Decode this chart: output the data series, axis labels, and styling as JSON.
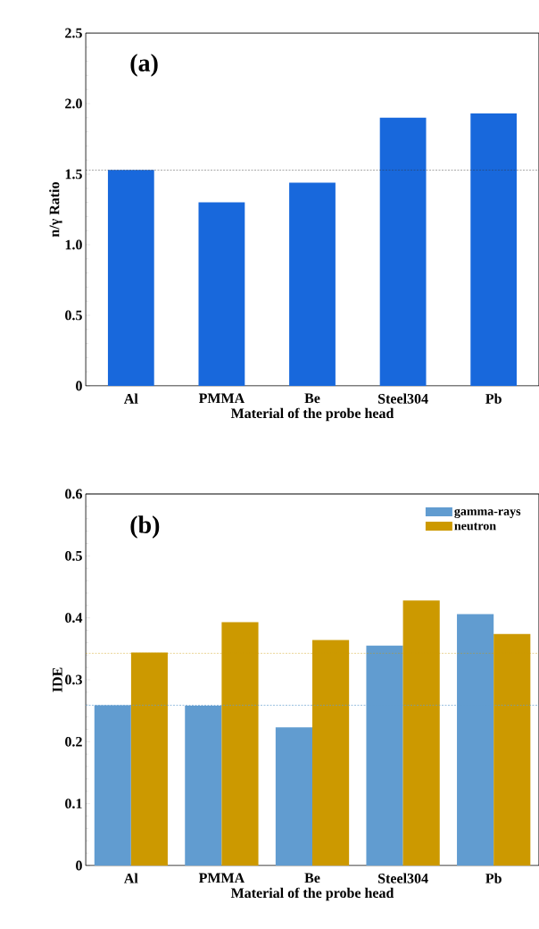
{
  "chart_data": [
    {
      "type": "bar",
      "categories": [
        "Al",
        "PMMA",
        "Be",
        "Steel304",
        "Pb"
      ],
      "values": [
        1.53,
        1.3,
        1.44,
        1.9,
        1.93
      ],
      "color": "#1868dc",
      "xlabel": "Material of the probe head",
      "ylabel": "n/γ Ratio",
      "ylim": [
        0,
        2.5
      ],
      "yticks": [
        0,
        0.5,
        {
          "value": 1,
          "label": "1.0"
        },
        1.5,
        {
          "value": 2,
          "label": "2.0"
        },
        2.5
      ],
      "ref_lines": [
        {
          "axis": "y",
          "value": 1.53,
          "color": "#333333",
          "line_style": "dashed"
        }
      ],
      "annotations": [
        "(a)"
      ],
      "legend": false,
      "grid": false
    },
    {
      "type": "bar",
      "categories": [
        "Al",
        "PMMA",
        "Be",
        "Steel304",
        "Pb"
      ],
      "series": [
        {
          "name": "gamma-rays",
          "color": "#619cd0",
          "values": [
            0.259,
            0.258,
            0.223,
            0.355,
            0.406
          ]
        },
        {
          "name": "neutron",
          "color": "#cc9900",
          "values": [
            0.344,
            0.393,
            0.364,
            0.428,
            0.374
          ]
        }
      ],
      "xlabel": "Material of the probe head",
      "ylabel": "IDE",
      "ylim": [
        0,
        0.6
      ],
      "yticks": [
        0,
        0.1,
        0.2,
        0.3,
        0.4,
        0.5,
        0.6
      ],
      "ref_lines": [
        {
          "axis": "y",
          "value": 0.343,
          "color": "#cc9900",
          "line_style": "dashed"
        },
        {
          "axis": "y",
          "value": 0.259,
          "color": "#619cd0",
          "line_style": "dashed"
        }
      ],
      "annotations": [
        "(b)"
      ],
      "legend": "top right",
      "grid": false
    }
  ]
}
